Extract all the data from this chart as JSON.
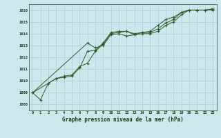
{
  "title": "Graphe pression niveau de la mer (hPa)",
  "background_color": "#cce8ed",
  "grid_color": "#aacdd4",
  "line_color": "#2d5a2d",
  "ylim": [
    1007.5,
    1016.5
  ],
  "yticks": [
    1008,
    1009,
    1010,
    1011,
    1012,
    1013,
    1014,
    1015,
    1016
  ],
  "xlim": [
    -0.5,
    23.5
  ],
  "xticks": [
    0,
    1,
    2,
    3,
    4,
    5,
    6,
    7,
    8,
    9,
    10,
    11,
    12,
    13,
    14,
    15,
    16,
    17,
    18,
    19,
    20,
    21,
    22,
    23
  ],
  "series": [
    {
      "x": [
        0,
        1,
        2,
        3,
        4,
        5,
        6,
        7,
        8,
        9,
        10,
        11,
        12,
        13,
        14,
        15,
        16,
        17,
        18,
        19,
        20,
        21,
        22,
        23
      ],
      "y": [
        1009.0,
        1008.4,
        1009.8,
        1010.2,
        1010.3,
        1010.4,
        1011.1,
        1012.5,
        1012.6,
        1013.2,
        1014.1,
        1014.2,
        1014.2,
        1014.0,
        1014.1,
        1014.1,
        1014.4,
        1014.9,
        1015.2,
        1015.8,
        1016.0,
        1016.0,
        1016.0,
        1016.1
      ]
    },
    {
      "x": [
        0,
        2,
        3,
        4,
        5,
        6,
        7,
        8,
        9,
        10,
        11,
        12,
        13,
        14,
        15,
        16,
        17,
        18,
        19,
        20,
        21,
        22,
        23
      ],
      "y": [
        1009.0,
        1009.8,
        1010.2,
        1010.4,
        1010.5,
        1011.2,
        1011.5,
        1012.5,
        1013.1,
        1014.0,
        1014.1,
        1014.2,
        1013.9,
        1014.1,
        1014.2,
        1014.7,
        1015.2,
        1015.4,
        1015.8,
        1016.0,
        1016.0,
        1016.0,
        1016.1
      ]
    },
    {
      "x": [
        0,
        7,
        8,
        9,
        10,
        11,
        12,
        13,
        14,
        15,
        16,
        17,
        18,
        19,
        20,
        21,
        22,
        23
      ],
      "y": [
        1009.0,
        1013.2,
        1012.8,
        1013.0,
        1013.9,
        1014.0,
        1013.8,
        1013.9,
        1014.0,
        1014.0,
        1014.2,
        1014.7,
        1015.0,
        1015.6,
        1016.0,
        1016.0,
        1016.0,
        1016.0
      ]
    }
  ]
}
